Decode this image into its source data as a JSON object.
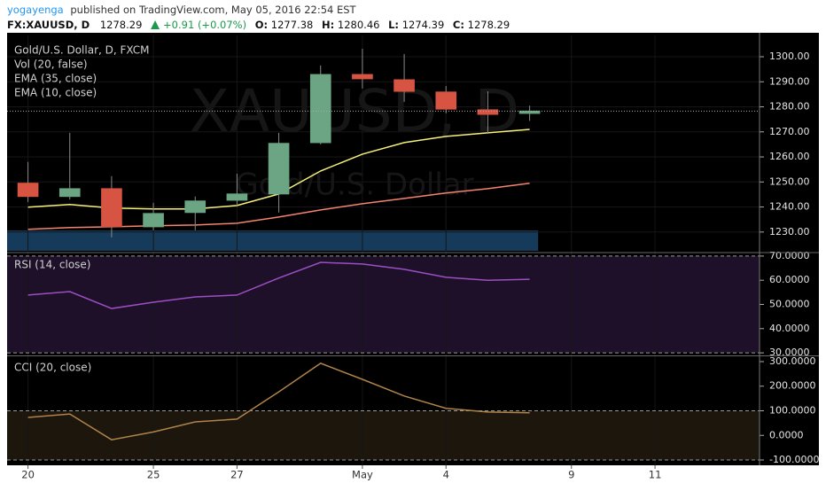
{
  "header": {
    "author": "yogayenga",
    "published": "published on TradingView.com, May 05, 2016 22:54 EST",
    "symbol": "FX:XAUUSD, D",
    "change": "+0.91 (+0.07%)",
    "ohlc_labels": [
      "O:",
      "H:",
      "L:",
      "C:"
    ]
  },
  "chart_data": [
    {
      "type": "candlestick",
      "title": "Gold/U.S. Dollar, D, FXCM",
      "watermark": "XAUUSD, D",
      "watermark_subtitle": "Gold/U.S. Dollar",
      "volume_label": "Vol (20, false)",
      "categories": [
        "20",
        null,
        null,
        "25",
        null,
        "27",
        null,
        null,
        "May",
        null,
        "4",
        null,
        null,
        "9",
        null,
        "11",
        null,
        null
      ],
      "open": [
        1249.5,
        1244.2,
        1247.3,
        1232.1,
        1237.8,
        1242.7,
        1245.2,
        1265.7,
        1292.9,
        1290.8,
        1285.9,
        1278.8,
        1277.38,
        null,
        null,
        null,
        null,
        null
      ],
      "high": [
        1258.0,
        1269.6,
        1252.3,
        1241.7,
        1244.2,
        1253.3,
        1269.6,
        1296.5,
        1303.2,
        1301.1,
        1288.3,
        1286.2,
        1280.46,
        null,
        null,
        null,
        null,
        null
      ],
      "low": [
        1242.0,
        1243.0,
        1227.9,
        1230.7,
        1230.7,
        1240.6,
        1237.8,
        1265.0,
        1287.3,
        1282.0,
        1277.4,
        1269.6,
        1274.39,
        null,
        null,
        null,
        null,
        null
      ],
      "close": [
        1244.2,
        1247.3,
        1232.1,
        1237.4,
        1242.4,
        1245.2,
        1265.4,
        1292.9,
        1291.2,
        1286.2,
        1279.1,
        1277.0,
        1278.29,
        null,
        null,
        null,
        null,
        null
      ],
      "up_color": "#6ba583",
      "down_color": "#d75442",
      "series": [
        {
          "name": "EMA (35, close)",
          "color": "#f28470",
          "values": [
            1231.1,
            1231.8,
            1232.1,
            1232.5,
            1232.8,
            1233.5,
            1236.0,
            1238.8,
            1241.3,
            1243.4,
            1245.6,
            1247.3,
            1249.5,
            null,
            null,
            null,
            null,
            null
          ]
        },
        {
          "name": "EMA (10, close)",
          "color": "#f5f07a",
          "values": [
            1239.9,
            1241.0,
            1239.6,
            1239.2,
            1239.2,
            1240.6,
            1245.2,
            1254.4,
            1261.1,
            1265.7,
            1268.2,
            1269.6,
            1271.0,
            null,
            null,
            null,
            null,
            null
          ]
        }
      ],
      "ylim": [
        1222.5,
        1308.5
      ],
      "yticks": [
        {
          "value": 1230,
          "label": "1230.00"
        },
        {
          "value": 1240,
          "label": "1240.00"
        },
        {
          "value": 1250,
          "label": "1250.00"
        },
        {
          "value": 1260,
          "label": "1260.00"
        },
        {
          "value": 1270,
          "label": "1270.00"
        },
        {
          "value": 1280,
          "label": "1280.00"
        },
        {
          "value": 1290,
          "label": "1290.00"
        },
        {
          "value": 1300,
          "label": "1300.00"
        }
      ],
      "grid": true
    },
    {
      "type": "line",
      "title": "RSI (14, close)",
      "color": "#9c4fc4",
      "band_color": "#1d1028",
      "values": [
        53.9,
        55.3,
        48.3,
        50.9,
        53.1,
        53.9,
        60.9,
        67.4,
        66.7,
        64.5,
        61.2,
        60.0,
        60.4,
        null,
        null,
        null,
        null,
        null
      ],
      "bands": [
        30,
        70
      ],
      "ylim": [
        29.3,
        70.7
      ],
      "yticks": [
        {
          "value": 30,
          "label": "30.0000"
        },
        {
          "value": 40,
          "label": "40.0000"
        },
        {
          "value": 50,
          "label": "50.0000"
        },
        {
          "value": 60,
          "label": "60.0000"
        },
        {
          "value": 70,
          "label": "70.0000"
        }
      ]
    },
    {
      "type": "line",
      "title": "CCI (20, close)",
      "color": "#b0834a",
      "band_color": "#1c160d",
      "values": [
        73,
        87,
        -18,
        14,
        55,
        66,
        177,
        293,
        228,
        160,
        110,
        95,
        92,
        null,
        null,
        null,
        null,
        null
      ],
      "bands": [
        -100,
        100
      ],
      "ylim": [
        -121.6,
        318
      ],
      "yticks": [
        {
          "value": -100,
          "label": "-100.0000"
        },
        {
          "value": 0,
          "label": "0.0000"
        },
        {
          "value": 100,
          "label": "100.0000"
        },
        {
          "value": 200,
          "label": "200.0000"
        },
        {
          "value": 300,
          "label": "300.0000"
        }
      ]
    }
  ]
}
